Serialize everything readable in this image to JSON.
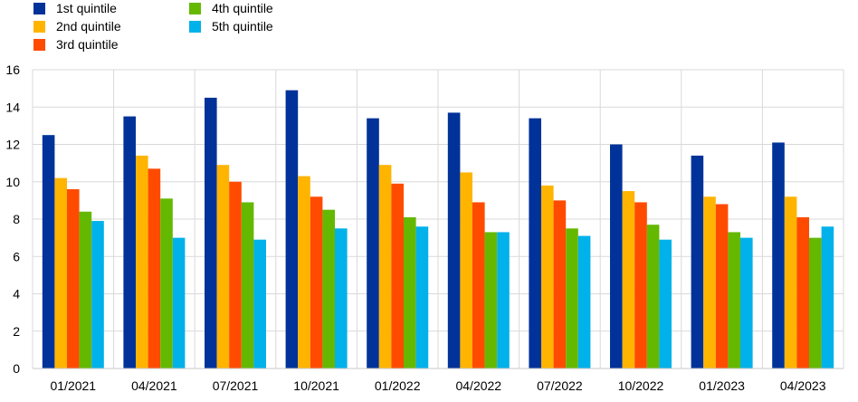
{
  "chart_data": {
    "type": "bar",
    "categories": [
      "01/2021",
      "04/2021",
      "07/2021",
      "10/2021",
      "01/2022",
      "04/2022",
      "07/2022",
      "10/2022",
      "01/2023",
      "04/2023"
    ],
    "series": [
      {
        "name": "1st quintile",
        "color": "#003299",
        "values": [
          12.5,
          13.5,
          14.5,
          14.9,
          13.4,
          13.7,
          13.4,
          12.0,
          11.4,
          12.1
        ]
      },
      {
        "name": "2nd quintile",
        "color": "#FFB400",
        "values": [
          10.2,
          11.4,
          10.9,
          10.3,
          10.9,
          10.5,
          9.8,
          9.5,
          9.2,
          9.2
        ]
      },
      {
        "name": "3rd quintile",
        "color": "#FF4B00",
        "values": [
          9.6,
          10.7,
          10.0,
          9.2,
          9.9,
          8.9,
          9.0,
          8.9,
          8.8,
          8.1
        ]
      },
      {
        "name": "4th quintile",
        "color": "#65B800",
        "values": [
          8.4,
          9.1,
          8.9,
          8.5,
          8.1,
          7.3,
          7.5,
          7.7,
          7.3,
          7.0
        ]
      },
      {
        "name": "5th quintile",
        "color": "#00B1EA",
        "values": [
          7.9,
          7.0,
          6.9,
          7.5,
          7.6,
          7.3,
          7.1,
          6.9,
          7.0,
          7.6
        ]
      }
    ],
    "ylim": [
      0,
      16
    ],
    "yticks": [
      0,
      2,
      4,
      6,
      8,
      10,
      12,
      14,
      16
    ],
    "grid": true,
    "legend_position": "top-left"
  }
}
